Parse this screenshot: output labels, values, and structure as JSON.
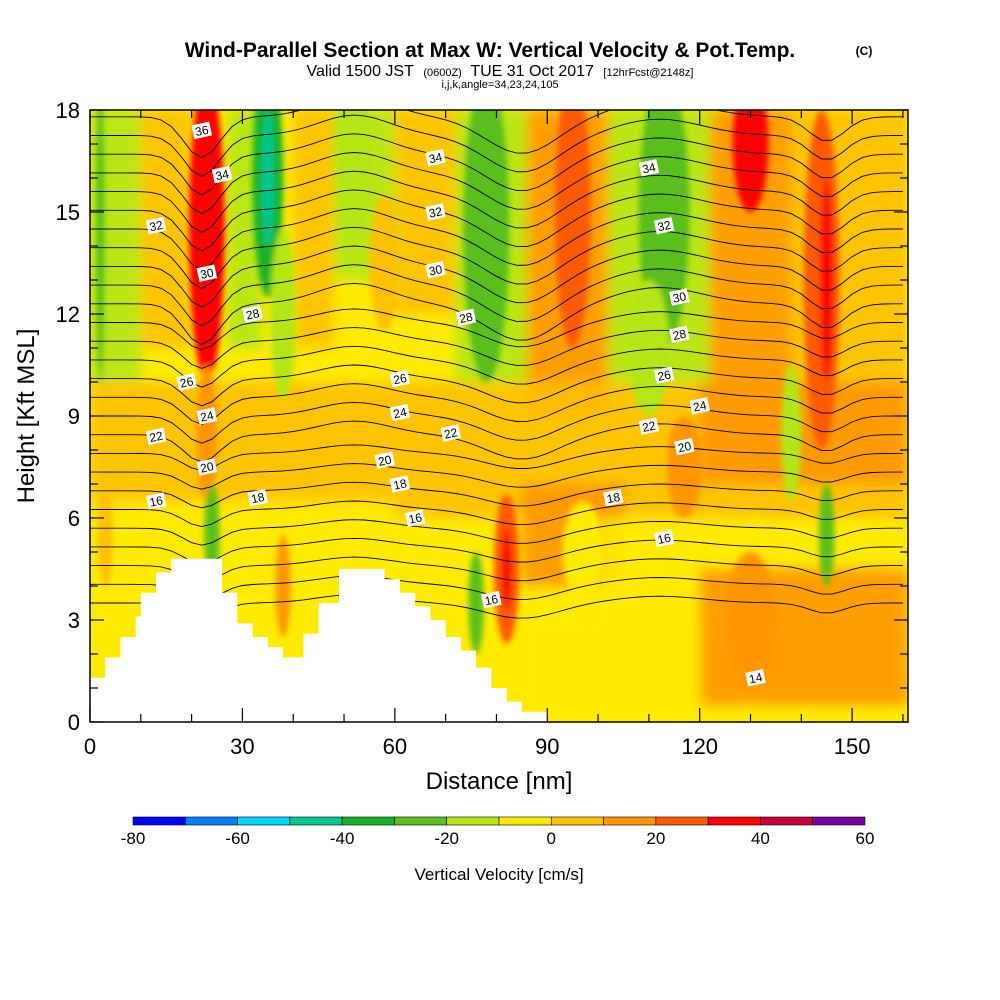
{
  "header": {
    "title": "Wind-Parallel Section at Max W: Vertical Velocity & Pot.Temp.",
    "title_suffix": "(C)",
    "valid_prefix": "Valid 1500 JST",
    "valid_utc": "(0600Z)",
    "valid_date": "TUE 31 Oct 2017",
    "forecast": "[12hrFcst@2148z]",
    "indices": "i,j,k,angle=34,23,24,105"
  },
  "chart_data": {
    "type": "heatmap",
    "title": "Wind-Parallel Section at Max W: Vertical Velocity & Pot.Temp.",
    "xlabel": "Distance [nm]",
    "ylabel": "Height [Kft MSL]",
    "xlim": [
      0,
      161
    ],
    "ylim": [
      0,
      18
    ],
    "x_ticks": [
      0,
      30,
      60,
      90,
      120,
      150
    ],
    "y_ticks": [
      0,
      3,
      6,
      9,
      12,
      15,
      18
    ],
    "colorbar": {
      "label": "Vertical Velocity [cm/s]",
      "ticks": [
        -80,
        -60,
        -40,
        -20,
        0,
        20,
        40,
        60
      ],
      "bins": [
        {
          "from": -80,
          "to": -70,
          "color": "#0000ff"
        },
        {
          "from": -70,
          "to": -60,
          "color": "#0080ff"
        },
        {
          "from": -60,
          "to": -50,
          "color": "#00d8ff"
        },
        {
          "from": -50,
          "to": -40,
          "color": "#00c890"
        },
        {
          "from": -40,
          "to": -30,
          "color": "#14b428"
        },
        {
          "from": -30,
          "to": -20,
          "color": "#5abe1e"
        },
        {
          "from": -20,
          "to": -10,
          "color": "#b4e614"
        },
        {
          "from": -10,
          "to": 0,
          "color": "#ffeb00"
        },
        {
          "from": 0,
          "to": 10,
          "color": "#ffc000"
        },
        {
          "from": 10,
          "to": 20,
          "color": "#ff9600"
        },
        {
          "from": 20,
          "to": 30,
          "color": "#ff5a00"
        },
        {
          "from": 30,
          "to": 40,
          "color": "#ff0000"
        },
        {
          "from": 40,
          "to": 50,
          "color": "#c8003c"
        },
        {
          "from": 50,
          "to": 60,
          "color": "#7800a0"
        }
      ]
    },
    "w_features": [
      {
        "x": 2,
        "y": 14.5,
        "w": 0.8,
        "h": 4.5,
        "value": -25
      },
      {
        "x": 3,
        "y": 5.5,
        "w": 1.5,
        "h": 1.5,
        "value": 5
      },
      {
        "x": 23,
        "y": 14.5,
        "w": 3.5,
        "h": 4.5,
        "value": 30
      },
      {
        "x": 23,
        "y": 8.5,
        "w": 2,
        "h": 2,
        "value": 10
      },
      {
        "x": 24,
        "y": 5.5,
        "w": 1.5,
        "h": 1.5,
        "value": -30
      },
      {
        "x": 35,
        "y": 16,
        "w": 3,
        "h": 3.5,
        "value": -40
      },
      {
        "x": 35,
        "y": 16,
        "w": 1.2,
        "h": 2,
        "value": -50
      },
      {
        "x": 38,
        "y": 12,
        "w": 2.5,
        "h": 2.5,
        "value": -20
      },
      {
        "x": 38,
        "y": 4,
        "w": 1.5,
        "h": 1.5,
        "value": 15
      },
      {
        "x": 52,
        "y": 16.5,
        "w": 3.5,
        "h": 2.5,
        "value": -20
      },
      {
        "x": 58,
        "y": 13.5,
        "w": 3,
        "h": 2,
        "value": 5
      },
      {
        "x": 78,
        "y": 14.5,
        "w": 4.5,
        "h": 4.5,
        "value": -30
      },
      {
        "x": 76,
        "y": 3.5,
        "w": 1.5,
        "h": 1.5,
        "value": -30
      },
      {
        "x": 82,
        "y": 4.5,
        "w": 2.5,
        "h": 2.2,
        "value": 25
      },
      {
        "x": 82,
        "y": 4.5,
        "w": 1,
        "h": 1.2,
        "value": 35
      },
      {
        "x": 95,
        "y": 15,
        "w": 3.5,
        "h": 4,
        "value": 25
      },
      {
        "x": 97,
        "y": 5,
        "w": 4,
        "h": 1.5,
        "value": -10
      },
      {
        "x": 113,
        "y": 15,
        "w": 5,
        "h": 4,
        "value": -30
      },
      {
        "x": 110,
        "y": 11,
        "w": 4,
        "h": 2,
        "value": -15
      },
      {
        "x": 117,
        "y": 7.5,
        "w": 3.5,
        "h": 1.5,
        "value": 15
      },
      {
        "x": 130,
        "y": 17,
        "w": 3.5,
        "h": 2,
        "value": 30
      },
      {
        "x": 130,
        "y": 3,
        "w": 5,
        "h": 2,
        "value": 15
      },
      {
        "x": 144,
        "y": 13,
        "w": 3.5,
        "h": 5,
        "value": 25
      },
      {
        "x": 145,
        "y": 13,
        "w": 1.3,
        "h": 3,
        "value": 35
      },
      {
        "x": 138,
        "y": 8.5,
        "w": 2,
        "h": 2,
        "value": -15
      },
      {
        "x": 145,
        "y": 5.5,
        "w": 1.5,
        "h": 1.5,
        "value": -30
      }
    ],
    "theta_labels": [
      {
        "x": 22,
        "y": 17.4,
        "value": "36"
      },
      {
        "x": 26,
        "y": 16.1,
        "value": "34"
      },
      {
        "x": 13,
        "y": 14.6,
        "value": "32"
      },
      {
        "x": 23,
        "y": 13.2,
        "value": "30"
      },
      {
        "x": 32,
        "y": 12.0,
        "value": "28"
      },
      {
        "x": 19,
        "y": 10.0,
        "value": "26"
      },
      {
        "x": 23,
        "y": 9.0,
        "value": "24"
      },
      {
        "x": 13,
        "y": 8.4,
        "value": "22"
      },
      {
        "x": 23,
        "y": 7.5,
        "value": "20"
      },
      {
        "x": 33,
        "y": 6.6,
        "value": "18"
      },
      {
        "x": 13,
        "y": 6.5,
        "value": "16"
      },
      {
        "x": 68,
        "y": 16.6,
        "value": "34"
      },
      {
        "x": 68,
        "y": 15.0,
        "value": "32"
      },
      {
        "x": 68,
        "y": 13.3,
        "value": "30"
      },
      {
        "x": 74,
        "y": 11.9,
        "value": "28"
      },
      {
        "x": 61,
        "y": 10.1,
        "value": "26"
      },
      {
        "x": 61,
        "y": 9.1,
        "value": "24"
      },
      {
        "x": 71,
        "y": 8.5,
        "value": "22"
      },
      {
        "x": 58,
        "y": 7.7,
        "value": "20"
      },
      {
        "x": 61,
        "y": 7.0,
        "value": "18"
      },
      {
        "x": 64,
        "y": 6.0,
        "value": "16"
      },
      {
        "x": 79,
        "y": 3.6,
        "value": "16"
      },
      {
        "x": 110,
        "y": 16.3,
        "value": "34"
      },
      {
        "x": 113,
        "y": 14.6,
        "value": "32"
      },
      {
        "x": 116,
        "y": 12.5,
        "value": "30"
      },
      {
        "x": 116,
        "y": 11.4,
        "value": "28"
      },
      {
        "x": 113,
        "y": 10.2,
        "value": "26"
      },
      {
        "x": 120,
        "y": 9.3,
        "value": "24"
      },
      {
        "x": 110,
        "y": 8.7,
        "value": "22"
      },
      {
        "x": 117,
        "y": 8.1,
        "value": "20"
      },
      {
        "x": 103,
        "y": 6.6,
        "value": "18"
      },
      {
        "x": 113,
        "y": 5.4,
        "value": "16"
      },
      {
        "x": 131,
        "y": 1.3,
        "value": "14"
      }
    ]
  },
  "colors": {
    "plot_frame": "#000000",
    "terrain": "#ffffff",
    "contour": "#000000"
  }
}
